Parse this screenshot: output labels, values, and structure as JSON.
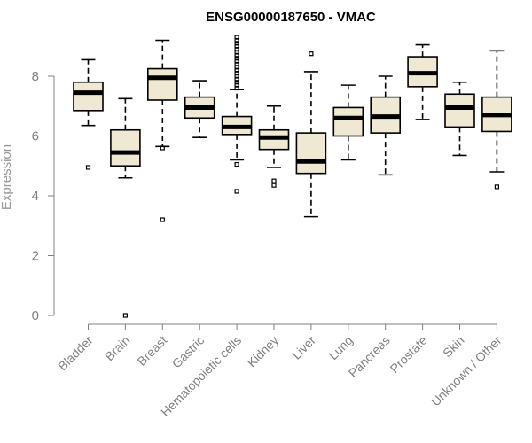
{
  "chart_data": {
    "type": "boxplot",
    "title": "ENSG00000187650 - VMAC",
    "xlabel": "",
    "ylabel": "Expression",
    "ylim": [
      0,
      9.3
    ],
    "yticks": [
      0,
      2,
      4,
      6,
      8
    ],
    "grid": false,
    "legend": "none",
    "box_fill": "#efe8d2",
    "categories": [
      "Bladder",
      "Brain",
      "Breast",
      "Gastric",
      "Hematopoietic cells",
      "Kidney",
      "Liver",
      "Lung",
      "Pancreas",
      "Prostate",
      "Skin",
      "Unknown / Other"
    ],
    "boxes": [
      {
        "category": "Bladder",
        "whisker_low": 6.35,
        "q1": 6.85,
        "median": 7.45,
        "q3": 7.8,
        "whisker_high": 8.55,
        "outliers": [
          4.95
        ]
      },
      {
        "category": "Brain",
        "whisker_low": 4.6,
        "q1": 5.0,
        "median": 5.45,
        "q3": 6.2,
        "whisker_high": 7.25,
        "outliers": [
          0.0
        ]
      },
      {
        "category": "Breast",
        "whisker_low": 5.65,
        "q1": 7.2,
        "median": 7.95,
        "q3": 8.25,
        "whisker_high": 9.2,
        "outliers": [
          5.6,
          3.2
        ]
      },
      {
        "category": "Gastric",
        "whisker_low": 5.95,
        "q1": 6.6,
        "median": 6.95,
        "q3": 7.3,
        "whisker_high": 7.85,
        "outliers": []
      },
      {
        "category": "Hematopoietic cells",
        "whisker_low": 5.2,
        "q1": 6.05,
        "median": 6.3,
        "q3": 6.65,
        "whisker_high": 7.55,
        "outliers": [
          5.05,
          4.15,
          7.6,
          7.7,
          7.8,
          7.9,
          8.0,
          8.1,
          8.2,
          8.3,
          8.4,
          8.5,
          8.6,
          8.7,
          8.8,
          8.9,
          9.0,
          9.1,
          9.2,
          9.3
        ]
      },
      {
        "category": "Kidney",
        "whisker_low": 4.95,
        "q1": 5.55,
        "median": 5.95,
        "q3": 6.2,
        "whisker_high": 7.0,
        "outliers": [
          4.5,
          4.35
        ]
      },
      {
        "category": "Liver",
        "whisker_low": 3.3,
        "q1": 4.75,
        "median": 5.15,
        "q3": 6.1,
        "whisker_high": 8.15,
        "outliers": [
          8.75
        ]
      },
      {
        "category": "Lung",
        "whisker_low": 5.2,
        "q1": 6.0,
        "median": 6.6,
        "q3": 6.95,
        "whisker_high": 7.7,
        "outliers": []
      },
      {
        "category": "Pancreas",
        "whisker_low": 4.7,
        "q1": 6.1,
        "median": 6.65,
        "q3": 7.3,
        "whisker_high": 8.0,
        "outliers": []
      },
      {
        "category": "Prostate",
        "whisker_low": 6.55,
        "q1": 7.65,
        "median": 8.1,
        "q3": 8.65,
        "whisker_high": 9.05,
        "outliers": []
      },
      {
        "category": "Skin",
        "whisker_low": 5.35,
        "q1": 6.3,
        "median": 6.95,
        "q3": 7.4,
        "whisker_high": 7.8,
        "outliers": []
      },
      {
        "category": "Unknown / Other",
        "whisker_low": 4.8,
        "q1": 6.15,
        "median": 6.7,
        "q3": 7.3,
        "whisker_high": 8.85,
        "outliers": [
          4.3
        ]
      }
    ]
  }
}
